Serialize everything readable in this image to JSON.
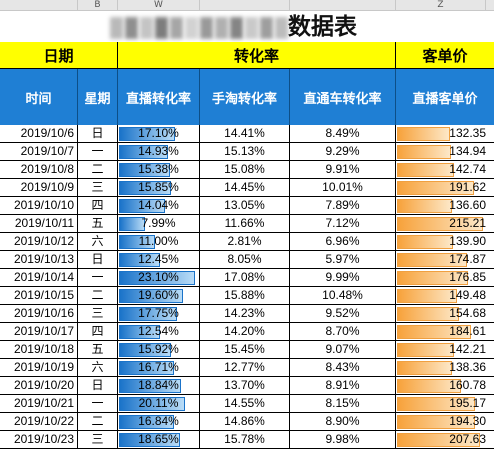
{
  "columns": [
    "",
    "B",
    "W",
    "",
    "",
    "",
    "Z"
  ],
  "title": {
    "suffix": "数据表",
    "redaction_colors": [
      "#b9b9b9",
      "#8f8f8f",
      "#c4c4c4",
      "#7d7d7d",
      "#a6a6a6",
      "#d2d2d2",
      "#999999",
      "#b0b0b0",
      "#858585",
      "#c9c9c9",
      "#9e9e9e",
      "#bcbcbc"
    ]
  },
  "bands": {
    "date": "日期",
    "conversion": "转化率",
    "unit_price": "客单价"
  },
  "headers": {
    "time": "时间",
    "weekday": "星期",
    "live_conv": "直播转化率",
    "taobao_conv": "手淘转化率",
    "ztc_conv": "直通车转化率",
    "live_price": "直播客单价"
  },
  "colors": {
    "header_blue": "#1f7fd4",
    "band_yellow": "#ffff00",
    "bar_blue": "#1a73c9",
    "bar_orange": "#f7a23b"
  },
  "rows": [
    {
      "date": "2019/10/6",
      "weekday": "日",
      "live": "17.10%",
      "live_frac": 0.74,
      "taobao": "14.41%",
      "ztc": "8.49%",
      "price": "132.35",
      "price_frac": 0.615
    },
    {
      "date": "2019/10/7",
      "weekday": "一",
      "live": "14.93%",
      "live_frac": 0.646,
      "taobao": "15.13%",
      "ztc": "9.29%",
      "price": "134.94",
      "price_frac": 0.627
    },
    {
      "date": "2019/10/8",
      "weekday": "二",
      "live": "15.38%",
      "live_frac": 0.666,
      "taobao": "15.08%",
      "ztc": "9.91%",
      "price": "142.74",
      "price_frac": 0.663
    },
    {
      "date": "2019/10/9",
      "weekday": "三",
      "live": "15.85%",
      "live_frac": 0.686,
      "taobao": "14.45%",
      "ztc": "10.01%",
      "price": "191.62",
      "price_frac": 0.89
    },
    {
      "date": "2019/10/10",
      "weekday": "四",
      "live": "14.04%",
      "live_frac": 0.608,
      "taobao": "13.05%",
      "ztc": "7.89%",
      "price": "136.60",
      "price_frac": 0.635
    },
    {
      "date": "2019/10/11",
      "weekday": "五",
      "live": "7.99%",
      "live_frac": 0.346,
      "taobao": "11.66%",
      "ztc": "7.12%",
      "price": "215.21",
      "price_frac": 1.0
    },
    {
      "date": "2019/10/12",
      "weekday": "六",
      "live": "11.00%",
      "live_frac": 0.476,
      "taobao": "2.81%",
      "ztc": "6.96%",
      "price": "139.90",
      "price_frac": 0.65
    },
    {
      "date": "2019/10/13",
      "weekday": "日",
      "live": "12.45%",
      "live_frac": 0.539,
      "taobao": "8.05%",
      "ztc": "5.97%",
      "price": "174.87",
      "price_frac": 0.813
    },
    {
      "date": "2019/10/14",
      "weekday": "一",
      "live": "23.10%",
      "live_frac": 1.0,
      "taobao": "17.08%",
      "ztc": "9.99%",
      "price": "176.85",
      "price_frac": 0.822
    },
    {
      "date": "2019/10/15",
      "weekday": "二",
      "live": "19.60%",
      "live_frac": 0.848,
      "taobao": "15.88%",
      "ztc": "10.48%",
      "price": "149.48",
      "price_frac": 0.695
    },
    {
      "date": "2019/10/16",
      "weekday": "三",
      "live": "17.75%",
      "live_frac": 0.768,
      "taobao": "14.23%",
      "ztc": "9.52%",
      "price": "154.68",
      "price_frac": 0.719
    },
    {
      "date": "2019/10/17",
      "weekday": "四",
      "live": "12.54%",
      "live_frac": 0.543,
      "taobao": "14.20%",
      "ztc": "8.70%",
      "price": "184.61",
      "price_frac": 0.858
    },
    {
      "date": "2019/10/18",
      "weekday": "五",
      "live": "15.92%",
      "live_frac": 0.689,
      "taobao": "15.45%",
      "ztc": "9.07%",
      "price": "142.21",
      "price_frac": 0.661
    },
    {
      "date": "2019/10/19",
      "weekday": "六",
      "live": "16.71%",
      "live_frac": 0.723,
      "taobao": "12.77%",
      "ztc": "8.43%",
      "price": "138.36",
      "price_frac": 0.643
    },
    {
      "date": "2019/10/20",
      "weekday": "日",
      "live": "18.84%",
      "live_frac": 0.816,
      "taobao": "13.70%",
      "ztc": "8.91%",
      "price": "160.78",
      "price_frac": 0.747
    },
    {
      "date": "2019/10/21",
      "weekday": "一",
      "live": "20.11%",
      "live_frac": 0.871,
      "taobao": "14.55%",
      "ztc": "8.15%",
      "price": "195.17",
      "price_frac": 0.907
    },
    {
      "date": "2019/10/22",
      "weekday": "二",
      "live": "16.84%",
      "live_frac": 0.729,
      "taobao": "14.86%",
      "ztc": "8.90%",
      "price": "194.30",
      "price_frac": 0.903
    },
    {
      "date": "2019/10/23",
      "weekday": "三",
      "live": "18.65%",
      "live_frac": 0.807,
      "taobao": "15.78%",
      "ztc": "9.98%",
      "price": "207.63",
      "price_frac": 0.965
    }
  ]
}
